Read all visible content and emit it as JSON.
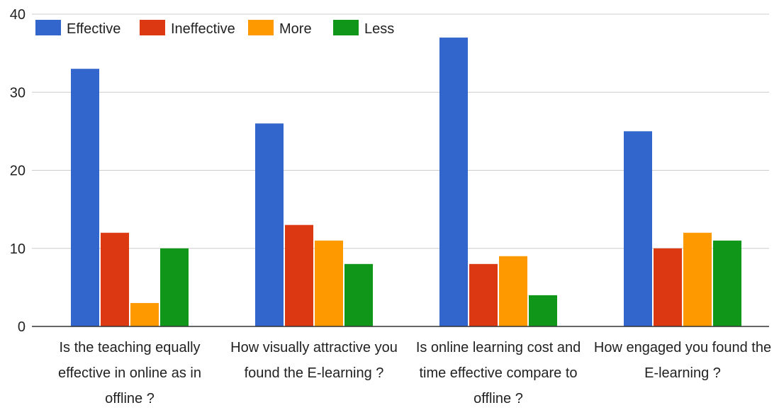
{
  "chart_data": {
    "type": "bar",
    "categories": [
      [
        "Is the teaching equally",
        "effective in online as in",
        "offline ?"
      ],
      [
        "How visually attractive you",
        "found the E-learning ?"
      ],
      [
        "Is online learning cost and",
        "time effective compare to",
        "offline ?"
      ],
      [
        "How engaged you found the",
        "E-learning ?"
      ]
    ],
    "series": [
      {
        "name": "Effective",
        "color": "#3366cc",
        "values": [
          33,
          26,
          37,
          25
        ]
      },
      {
        "name": "Ineffective",
        "color": "#dc3912",
        "values": [
          12,
          13,
          8,
          10
        ]
      },
      {
        "name": "More",
        "color": "#ff9900",
        "values": [
          3,
          11,
          9,
          12
        ]
      },
      {
        "name": "Less",
        "color": "#109618",
        "values": [
          10,
          8,
          4,
          11
        ]
      }
    ],
    "ylim": [
      0,
      40
    ],
    "yticks": [
      0,
      10,
      20,
      30,
      40
    ],
    "grid": true,
    "legend": "top-left"
  }
}
